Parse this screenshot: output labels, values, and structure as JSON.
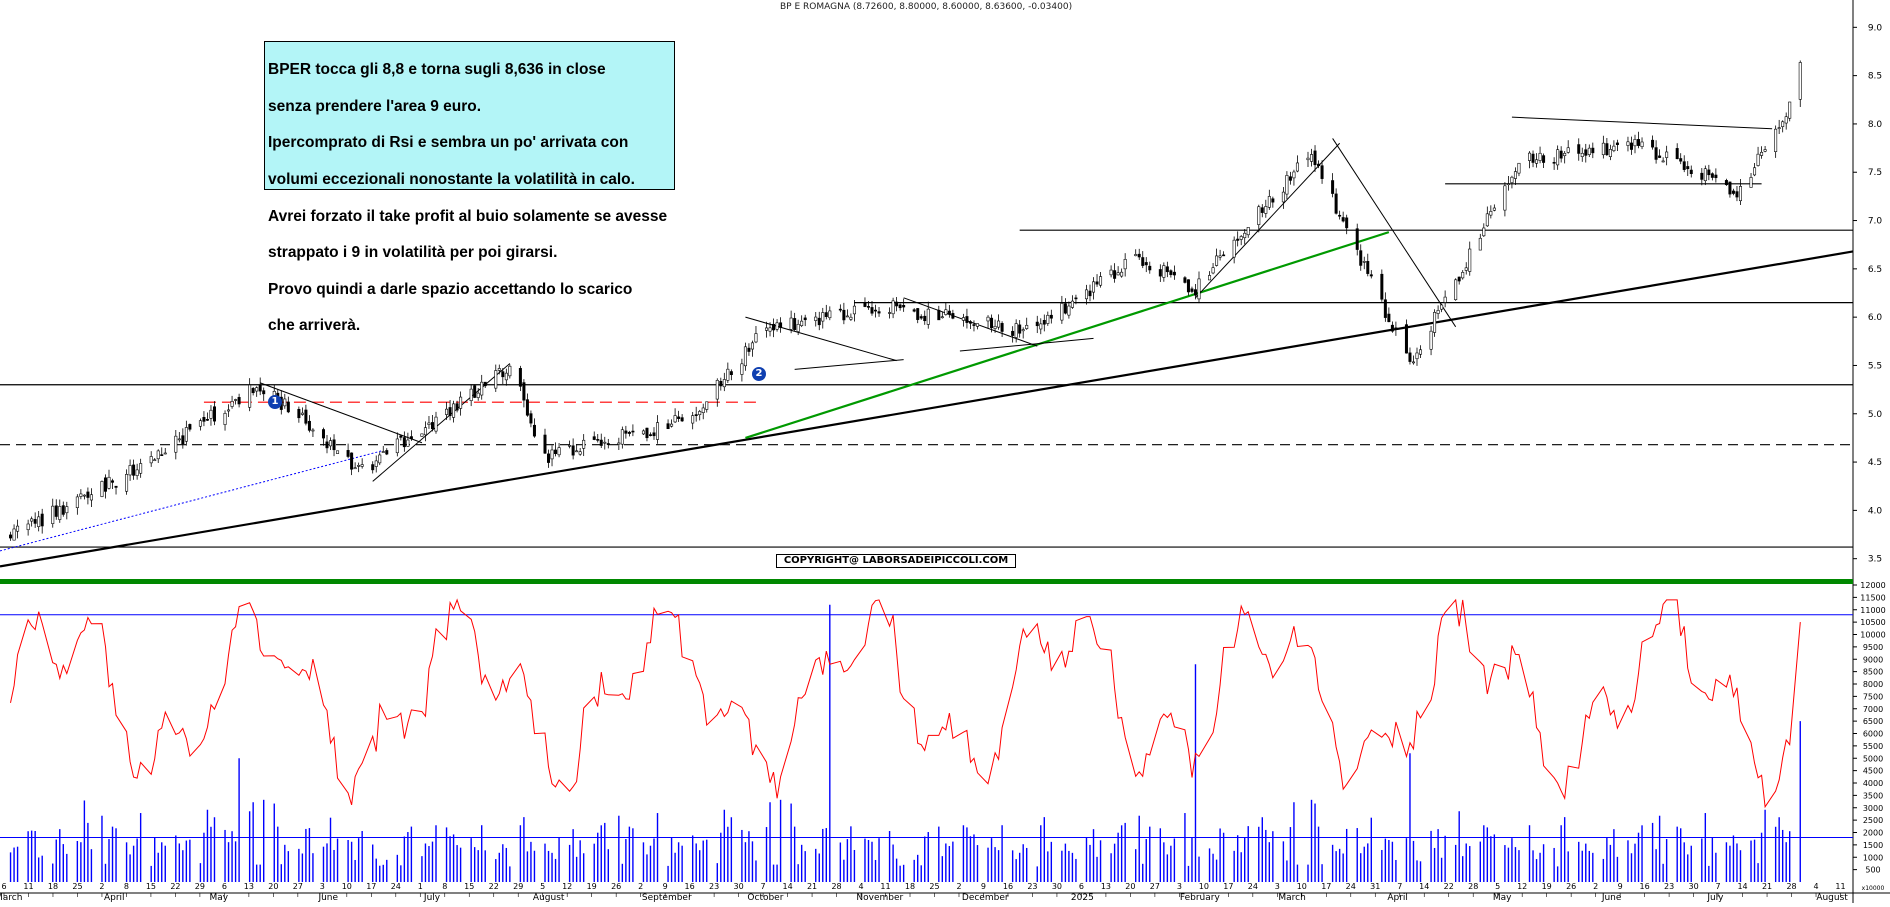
{
  "title": "BP E ROMAGNA (8.72600, 8.80000, 8.60000, 8.63600, -0.03400)",
  "annotation": {
    "lines": [
      "BPER tocca gli 8,8 e torna sugli 8,636 in close",
      "senza prendere l'area 9 euro.",
      "Ipercomprato di Rsi e sembra un po' arrivata con",
      "volumi eccezionali nonostante la volatilità in calo.",
      "Avrei forzato il take profit al buio solamente se avesse",
      "strappato i 9 in volatilità per poi girarsi.",
      "Provo quindi a darle spazio accettando lo scarico",
      "che arriverà."
    ]
  },
  "copyright": "COPYRIGHT@ LABORSADEIPICCOLI.COM",
  "badges": [
    "1",
    "2"
  ],
  "colors": {
    "candle": "#000000",
    "support_trend": "#000000",
    "green_trend": "#009900",
    "red_dashed": "#ff0000",
    "blue_dotted": "#0000ff",
    "volatility_line": "#ff0000",
    "volume_bars": "#0000ff",
    "volume_ref_line": "#0000ff",
    "divider": "#008800"
  },
  "chart_data": [
    {
      "type": "candlestick",
      "title": "BP E ROMAGNA (8.72600, 8.80000, 8.60000, 8.63600, -0.03400)",
      "ylim": [
        3.3,
        9.2
      ],
      "y_ticks": [
        "9.0",
        "8.5",
        "8.0",
        "7.5",
        "7.0",
        "6.5",
        "6.0",
        "5.5",
        "5.0",
        "4.5",
        "4.0",
        "3.5"
      ],
      "key_points": [
        {
          "date": "2024-03-06",
          "close": 3.75
        },
        {
          "date": "2024-04-05",
          "close": 4.3
        },
        {
          "date": "2024-05-16",
          "close": 5.3
        },
        {
          "date": "2024-06-14",
          "close": 4.4
        },
        {
          "date": "2024-07-26",
          "close": 5.5
        },
        {
          "date": "2024-08-05",
          "close": 4.55
        },
        {
          "date": "2024-09-16",
          "close": 4.95
        },
        {
          "date": "2024-10-07",
          "close": 5.9
        },
        {
          "date": "2024-11-11",
          "close": 6.1
        },
        {
          "date": "2024-12-20",
          "close": 5.85
        },
        {
          "date": "2025-01-20",
          "close": 6.6
        },
        {
          "date": "2025-02-06",
          "close": 6.3
        },
        {
          "date": "2025-03-11",
          "close": 7.7
        },
        {
          "date": "2025-04-08",
          "close": 5.5
        },
        {
          "date": "2025-05-09",
          "close": 7.6
        },
        {
          "date": "2025-06-10",
          "close": 7.8
        },
        {
          "date": "2025-07-11",
          "close": 7.3
        },
        {
          "date": "2025-07-24",
          "close": 8.1
        },
        {
          "date": "2025-07-28",
          "close": 8.636
        }
      ],
      "horizontal_levels": [
        {
          "value": 5.3,
          "style": "solid"
        },
        {
          "value": 4.68,
          "style": "dashed"
        },
        {
          "value": 3.62,
          "style": "solid"
        },
        {
          "value": 6.9,
          "style": "solid"
        },
        {
          "value": 6.15,
          "style": "solid"
        },
        {
          "value": 7.38,
          "style": "solid"
        },
        {
          "value": 5.12,
          "style": "red-dashed"
        }
      ]
    },
    {
      "type": "line+bar",
      "ylim": [
        0,
        12000
      ],
      "y_ticks": [
        "12000",
        "11500",
        "11000",
        "10500",
        "10000",
        "9500",
        "9000",
        "8500",
        "8000",
        "7500",
        "7000",
        "6500",
        "6000",
        "5500",
        "5000",
        "4500",
        "4000",
        "3500",
        "3000",
        "2500",
        "2000",
        "1500",
        "1000",
        "500"
      ],
      "axis_unit_label": "x10000",
      "volatility_reference": 10800,
      "volume_reference": 1800,
      "spikes": [
        {
          "date": "2024-05-10",
          "volume": 5000
        },
        {
          "date": "2024-10-25",
          "volume": 11200
        },
        {
          "date": "2025-02-06",
          "volume": 8800
        },
        {
          "date": "2025-04-08",
          "volume": 5200
        },
        {
          "date": "2025-07-28",
          "volume": 6500
        }
      ]
    }
  ],
  "x_axis": {
    "day_labels": [
      "6",
      "11",
      "18",
      "25",
      "2",
      "8",
      "15",
      "22",
      "29",
      "6",
      "13",
      "20",
      "27",
      "3",
      "10",
      "17",
      "24",
      "1",
      "8",
      "15",
      "22",
      "29",
      "5",
      "12",
      "19",
      "26",
      "2",
      "9",
      "16",
      "23",
      "30",
      "7",
      "14",
      "21",
      "28",
      "4",
      "11",
      "18",
      "25",
      "2",
      "9",
      "16",
      "23",
      "30",
      "6",
      "13",
      "20",
      "27",
      "3",
      "10",
      "17",
      "24",
      "3",
      "10",
      "17",
      "24",
      "31",
      "7",
      "14",
      "22",
      "28",
      "5",
      "12",
      "19",
      "26",
      "2",
      "9",
      "16",
      "23",
      "30",
      "7",
      "14",
      "21",
      "28",
      "4",
      "11"
    ],
    "months": [
      "March",
      "April",
      "May",
      "June",
      "July",
      "August",
      "September",
      "October",
      "November",
      "December",
      "2025",
      "February",
      "March",
      "April",
      "May",
      "June",
      "July",
      "August"
    ]
  }
}
